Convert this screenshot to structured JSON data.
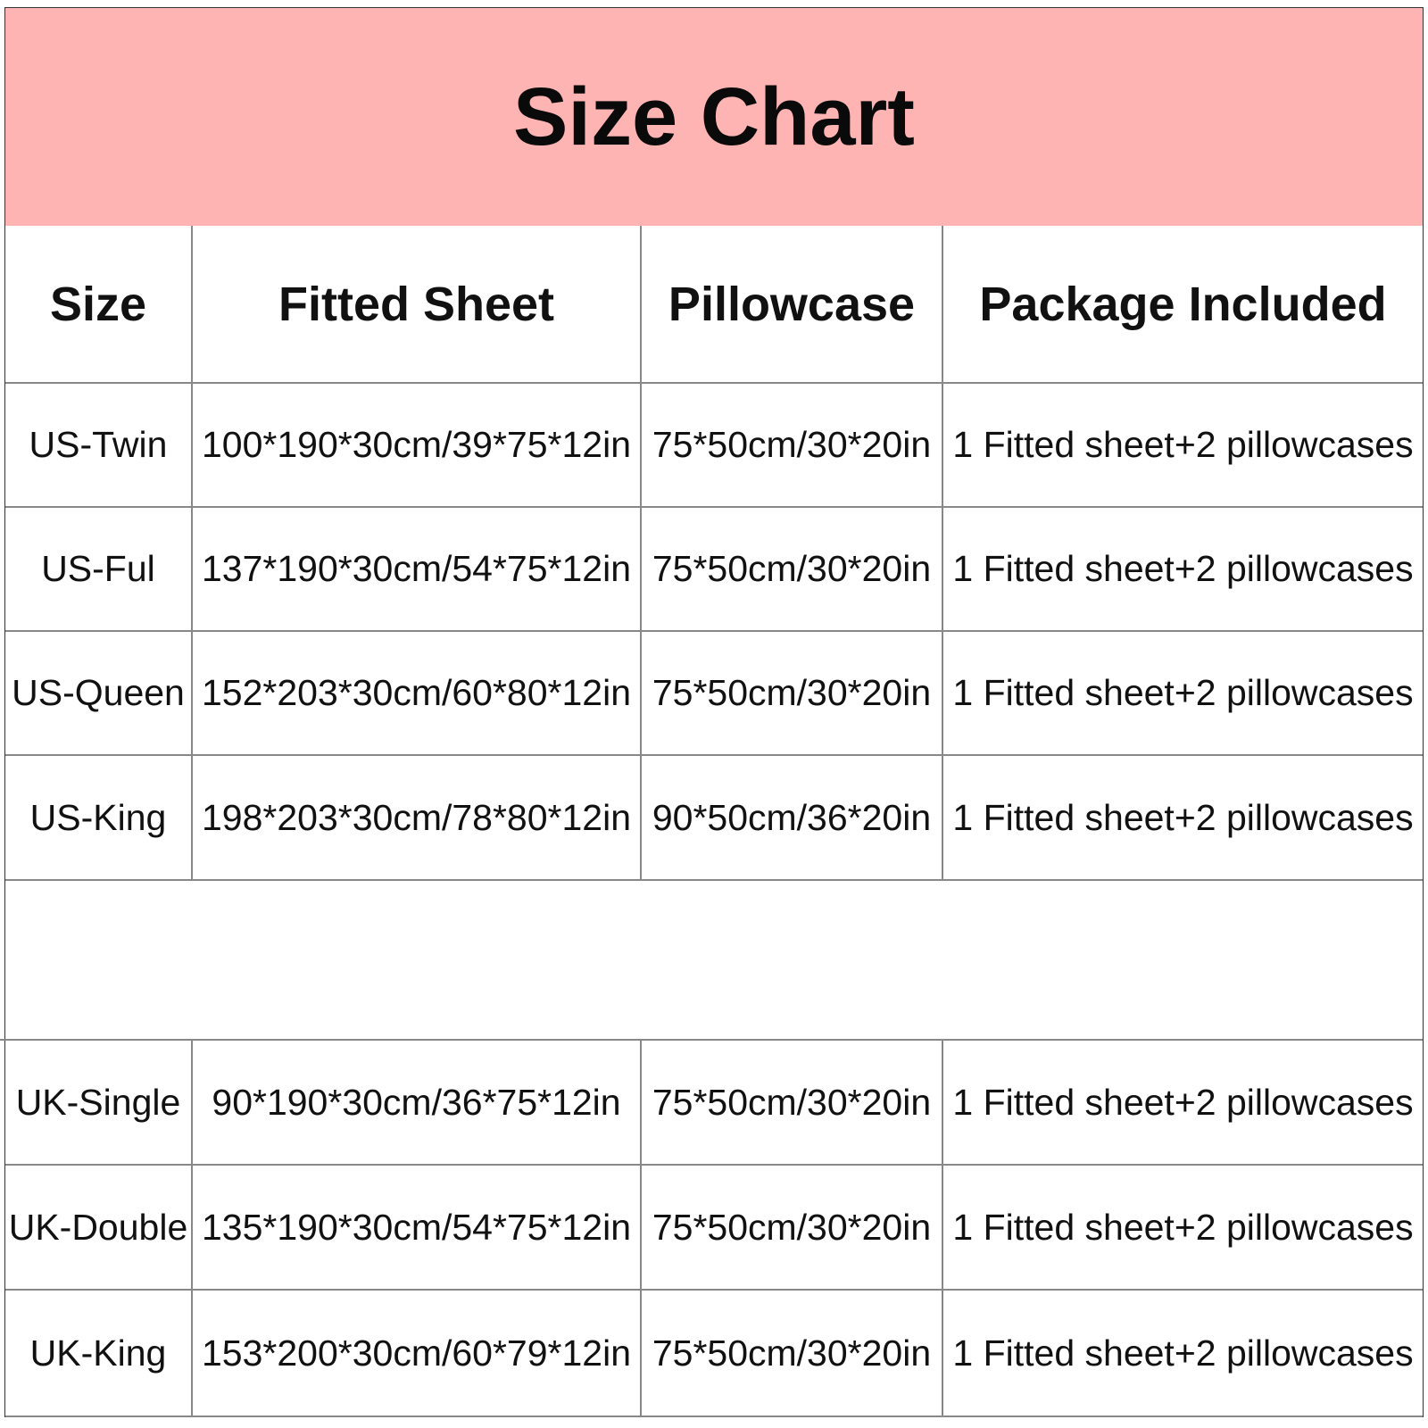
{
  "title": "Size Chart",
  "colors": {
    "banner": "#ffb4b4"
  },
  "headers": [
    "Size",
    "Fitted Sheet",
    "Pillowcase",
    "Package Included"
  ],
  "us_rows": [
    [
      "US-Twin",
      "100*190*30cm/39*75*12in",
      "75*50cm/30*20in",
      "1 Fitted sheet+2 pillowcases"
    ],
    [
      "US-Ful",
      "137*190*30cm/54*75*12in",
      "75*50cm/30*20in",
      "1 Fitted sheet+2 pillowcases"
    ],
    [
      "US-Queen",
      "152*203*30cm/60*80*12in",
      "75*50cm/30*20in",
      "1 Fitted sheet+2 pillowcases"
    ],
    [
      "US-King",
      "198*203*30cm/78*80*12in",
      "90*50cm/36*20in",
      "1 Fitted sheet+2 pillowcases"
    ]
  ],
  "uk_rows": [
    [
      "UK-Single",
      "90*190*30cm/36*75*12in",
      "75*50cm/30*20in",
      "1 Fitted sheet+2 pillowcases"
    ],
    [
      "UK-Double",
      "135*190*30cm/54*75*12in",
      "75*50cm/30*20in",
      "1 Fitted sheet+2 pillowcases"
    ],
    [
      "UK-King",
      "153*200*30cm/60*79*12in",
      "75*50cm/30*20in",
      "1 Fitted sheet+2 pillowcases"
    ]
  ]
}
